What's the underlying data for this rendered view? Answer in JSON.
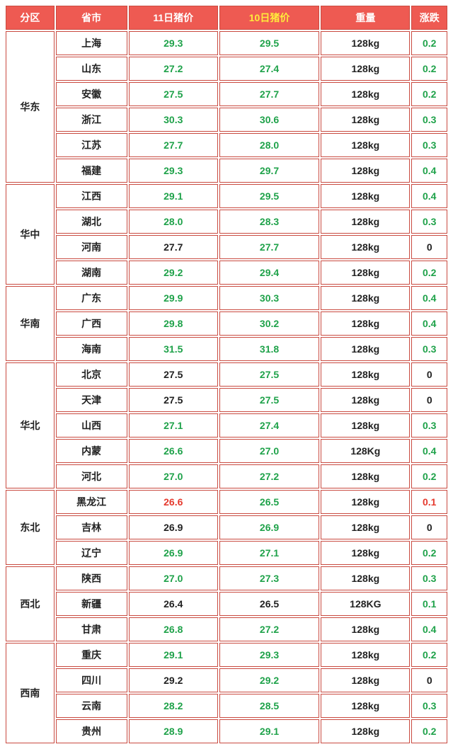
{
  "type": "table",
  "colors": {
    "header_bg": "#ee5a52",
    "header_fg": "#ffffff",
    "border": "#c94a40",
    "text": "#222222",
    "green": "#1fa24a",
    "red": "#e53a2e",
    "yellow": "#ffeb3b"
  },
  "columns": {
    "region": "分区",
    "province": "省市",
    "price11": "11日猪价",
    "price10": "10日猪价",
    "weight": "重量",
    "change": "涨跌"
  },
  "header_styles": {
    "price10_color": "#ffeb3b"
  },
  "regions": [
    {
      "name": "华东",
      "rows": [
        {
          "province": "上海",
          "p11": "29.3",
          "c11": "green",
          "p10": "29.5",
          "c10": "green",
          "weight": "128kg",
          "chg": "0.2",
          "cchg": "green"
        },
        {
          "province": "山东",
          "p11": "27.2",
          "c11": "green",
          "p10": "27.4",
          "c10": "green",
          "weight": "128kg",
          "chg": "0.2",
          "cchg": "green"
        },
        {
          "province": "安徽",
          "p11": "27.5",
          "c11": "green",
          "p10": "27.7",
          "c10": "green",
          "weight": "128kg",
          "chg": "0.2",
          "cchg": "green"
        },
        {
          "province": "浙江",
          "p11": "30.3",
          "c11": "green",
          "p10": "30.6",
          "c10": "green",
          "weight": "128kg",
          "chg": "0.3",
          "cchg": "green"
        },
        {
          "province": "江苏",
          "p11": "27.7",
          "c11": "green",
          "p10": "28.0",
          "c10": "green",
          "weight": "128kg",
          "chg": "0.3",
          "cchg": "green"
        },
        {
          "province": "福建",
          "p11": "29.3",
          "c11": "green",
          "p10": "29.7",
          "c10": "green",
          "weight": "128kg",
          "chg": "0.4",
          "cchg": "green"
        }
      ]
    },
    {
      "name": "华中",
      "rows": [
        {
          "province": "江西",
          "p11": "29.1",
          "c11": "green",
          "p10": "29.5",
          "c10": "green",
          "weight": "128kg",
          "chg": "0.4",
          "cchg": "green"
        },
        {
          "province": "湖北",
          "p11": "28.0",
          "c11": "green",
          "p10": "28.3",
          "c10": "green",
          "weight": "128kg",
          "chg": "0.3",
          "cchg": "green"
        },
        {
          "province": "河南",
          "p11": "27.7",
          "c11": "text",
          "p10": "27.7",
          "c10": "green",
          "weight": "128kg",
          "chg": "0",
          "cchg": "text"
        },
        {
          "province": "湖南",
          "p11": "29.2",
          "c11": "green",
          "p10": "29.4",
          "c10": "green",
          "weight": "128kg",
          "chg": "0.2",
          "cchg": "green"
        }
      ]
    },
    {
      "name": "华南",
      "rows": [
        {
          "province": "广东",
          "p11": "29.9",
          "c11": "green",
          "p10": "30.3",
          "c10": "green",
          "weight": "128kg",
          "chg": "0.4",
          "cchg": "green"
        },
        {
          "province": "广西",
          "p11": "29.8",
          "c11": "green",
          "p10": "30.2",
          "c10": "green",
          "weight": "128kg",
          "chg": "0.4",
          "cchg": "green"
        },
        {
          "province": "海南",
          "p11": "31.5",
          "c11": "green",
          "p10": "31.8",
          "c10": "green",
          "weight": "128kg",
          "chg": "0.3",
          "cchg": "green"
        }
      ]
    },
    {
      "name": "华北",
      "rows": [
        {
          "province": "北京",
          "p11": "27.5",
          "c11": "text",
          "p10": "27.5",
          "c10": "green",
          "weight": "128kg",
          "chg": "0",
          "cchg": "text"
        },
        {
          "province": "天津",
          "p11": "27.5",
          "c11": "text",
          "p10": "27.5",
          "c10": "green",
          "weight": "128kg",
          "chg": "0",
          "cchg": "text"
        },
        {
          "province": "山西",
          "p11": "27.1",
          "c11": "green",
          "p10": "27.4",
          "c10": "green",
          "weight": "128kg",
          "chg": "0.3",
          "cchg": "green"
        },
        {
          "province": "内蒙",
          "p11": "26.6",
          "c11": "green",
          "p10": "27.0",
          "c10": "green",
          "weight": "128Kg",
          "chg": "0.4",
          "cchg": "green"
        },
        {
          "province": "河北",
          "p11": "27.0",
          "c11": "green",
          "p10": "27.2",
          "c10": "green",
          "weight": "128kg",
          "chg": "0.2",
          "cchg": "green"
        }
      ]
    },
    {
      "name": "东北",
      "rows": [
        {
          "province": "黑龙江",
          "p11": "26.6",
          "c11": "red",
          "p10": "26.5",
          "c10": "green",
          "weight": "128kg",
          "chg": "0.1",
          "cchg": "red"
        },
        {
          "province": "吉林",
          "p11": "26.9",
          "c11": "text",
          "p10": "26.9",
          "c10": "green",
          "weight": "128kg",
          "chg": "0",
          "cchg": "text"
        },
        {
          "province": "辽宁",
          "p11": "26.9",
          "c11": "green",
          "p10": "27.1",
          "c10": "green",
          "weight": "128kg",
          "chg": "0.2",
          "cchg": "green"
        }
      ]
    },
    {
      "name": "西北",
      "rows": [
        {
          "province": "陕西",
          "p11": "27.0",
          "c11": "green",
          "p10": "27.3",
          "c10": "green",
          "weight": "128kg",
          "chg": "0.3",
          "cchg": "green"
        },
        {
          "province": "新疆",
          "p11": "26.4",
          "c11": "text",
          "p10": "26.5",
          "c10": "text",
          "weight": "128KG",
          "chg": "0.1",
          "cchg": "green"
        },
        {
          "province": "甘肃",
          "p11": "26.8",
          "c11": "green",
          "p10": "27.2",
          "c10": "green",
          "weight": "128kg",
          "chg": "0.4",
          "cchg": "green"
        }
      ]
    },
    {
      "name": "西南",
      "rows": [
        {
          "province": "重庆",
          "p11": "29.1",
          "c11": "green",
          "p10": "29.3",
          "c10": "green",
          "weight": "128kg",
          "chg": "0.2",
          "cchg": "green"
        },
        {
          "province": "四川",
          "p11": "29.2",
          "c11": "text",
          "p10": "29.2",
          "c10": "green",
          "weight": "128kg",
          "chg": "0",
          "cchg": "text"
        },
        {
          "province": "云南",
          "p11": "28.2",
          "c11": "green",
          "p10": "28.5",
          "c10": "green",
          "weight": "128kg",
          "chg": "0.3",
          "cchg": "green"
        },
        {
          "province": "贵州",
          "p11": "28.9",
          "c11": "green",
          "p10": "29.1",
          "c10": "green",
          "weight": "128kg",
          "chg": "0.2",
          "cchg": "green"
        }
      ]
    }
  ]
}
